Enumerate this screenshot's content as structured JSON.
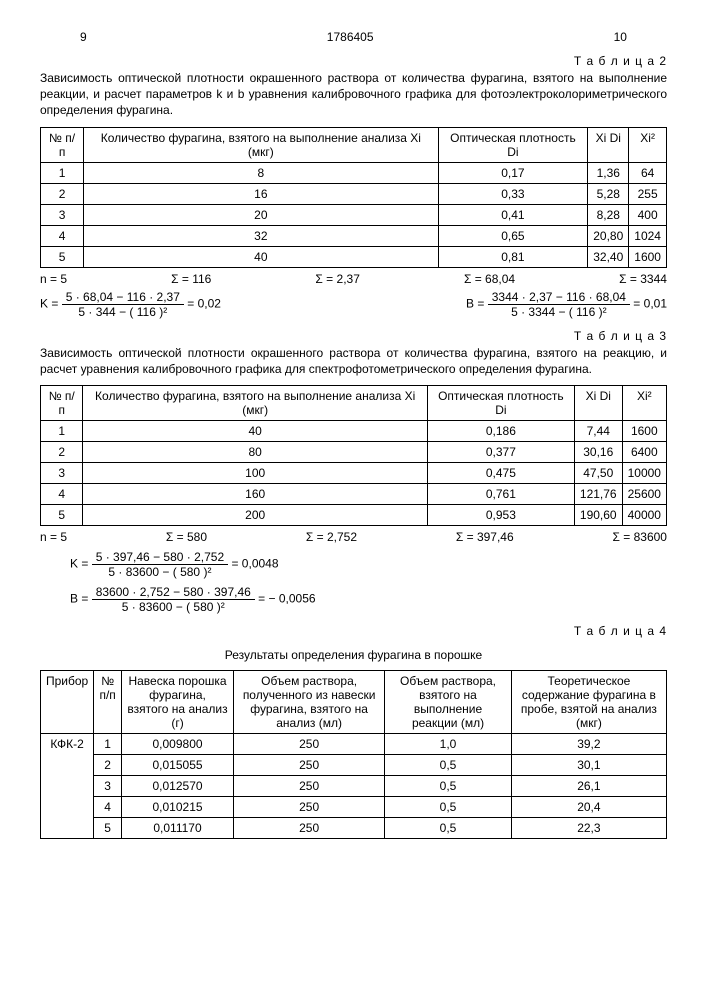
{
  "page_left": "9",
  "doc_id": "1786405",
  "page_right": "10",
  "table2_label": "Т а б л и ц а 2",
  "table2_caption": "Зависимость оптической плотности окрашенного раствора от количества фурагина, взятого на выполнение реакции, и расчет параметров k и b уравнения калибровочного графика для фотоэлектроколориметрического определения фурагина.",
  "table2": {
    "headers": [
      "№ п/п",
      "Количество фурагина, взятого на выполнение анализа Xi (мкг)",
      "Оптическая плотность Di",
      "Xi Di",
      "Xi²"
    ],
    "rows": [
      [
        "1",
        "8",
        "0,17",
        "1,36",
        "64"
      ],
      [
        "2",
        "16",
        "0,33",
        "5,28",
        "255"
      ],
      [
        "3",
        "20",
        "0,41",
        "8,28",
        "400"
      ],
      [
        "4",
        "32",
        "0,65",
        "20,80",
        "1024"
      ],
      [
        "5",
        "40",
        "0,81",
        "32,40",
        "1600"
      ]
    ],
    "sums": [
      "n = 5",
      "Σ = 116",
      "Σ = 2,37",
      "Σ = 68,04",
      "Σ = 3344"
    ],
    "k_num": "5 · 68,04 − 116 · 2,37",
    "k_den": "5 · 344 − ( 116 )²",
    "k_val": "= 0,02",
    "b_num": "3344 · 2,37 − 116 · 68,04",
    "b_den": "5 · 3344 − ( 116 )²",
    "b_val": "= 0,01"
  },
  "table3_label": "Т а б л и ц а 3",
  "table3_caption": "Зависимость оптической плотности окрашенного раствора от количества фурагина, взятого на реакцию, и расчет уравнения калибровочного графика для спектрофотометрического определения фурагина.",
  "table3": {
    "headers": [
      "№ п/п",
      "Количество фурагина, взятого на выполнение анализа Xi (мкг)",
      "Оптическая плотность Di",
      "Xi Di",
      "Xi²"
    ],
    "rows": [
      [
        "1",
        "40",
        "0,186",
        "7,44",
        "1600"
      ],
      [
        "2",
        "80",
        "0,377",
        "30,16",
        "6400"
      ],
      [
        "3",
        "100",
        "0,475",
        "47,50",
        "10000"
      ],
      [
        "4",
        "160",
        "0,761",
        "121,76",
        "25600"
      ],
      [
        "5",
        "200",
        "0,953",
        "190,60",
        "40000"
      ]
    ],
    "sums": [
      "n = 5",
      "Σ = 580",
      "Σ = 2,752",
      "Σ = 397,46",
      "Σ = 83600"
    ],
    "k_num": "5 · 397,46 − 580 · 2,752",
    "k_den": "5 · 83600 − ( 580 )²",
    "k_val": "= 0,0048",
    "b_num": "83600 · 2,752 − 580 · 397,46",
    "b_den": "5 · 83600 − ( 580 )²",
    "b_val": "= − 0,0056"
  },
  "table4_label": "Т а б л и ц а 4",
  "table4_title": "Результаты определения фурагина в порошке",
  "table4": {
    "headers": [
      "Прибор",
      "№ п/п",
      "Навеска порошка фурагина, взятого на анализ (г)",
      "Объем раствора, полученного из навески фурагина, взятого на анализ (мл)",
      "Объем раствора, взятого на выполнение реакции (мл)",
      "Теоретическое содержание фурагина в пробе, взятой на анализ (мкг)"
    ],
    "device": "КФК-2",
    "rows": [
      [
        "1",
        "0,009800",
        "250",
        "1,0",
        "39,2"
      ],
      [
        "2",
        "0,015055",
        "250",
        "0,5",
        "30,1"
      ],
      [
        "3",
        "0,012570",
        "250",
        "0,5",
        "26,1"
      ],
      [
        "4",
        "0,010215",
        "250",
        "0,5",
        "20,4"
      ],
      [
        "5",
        "0,011170",
        "250",
        "0,5",
        "22,3"
      ]
    ]
  }
}
